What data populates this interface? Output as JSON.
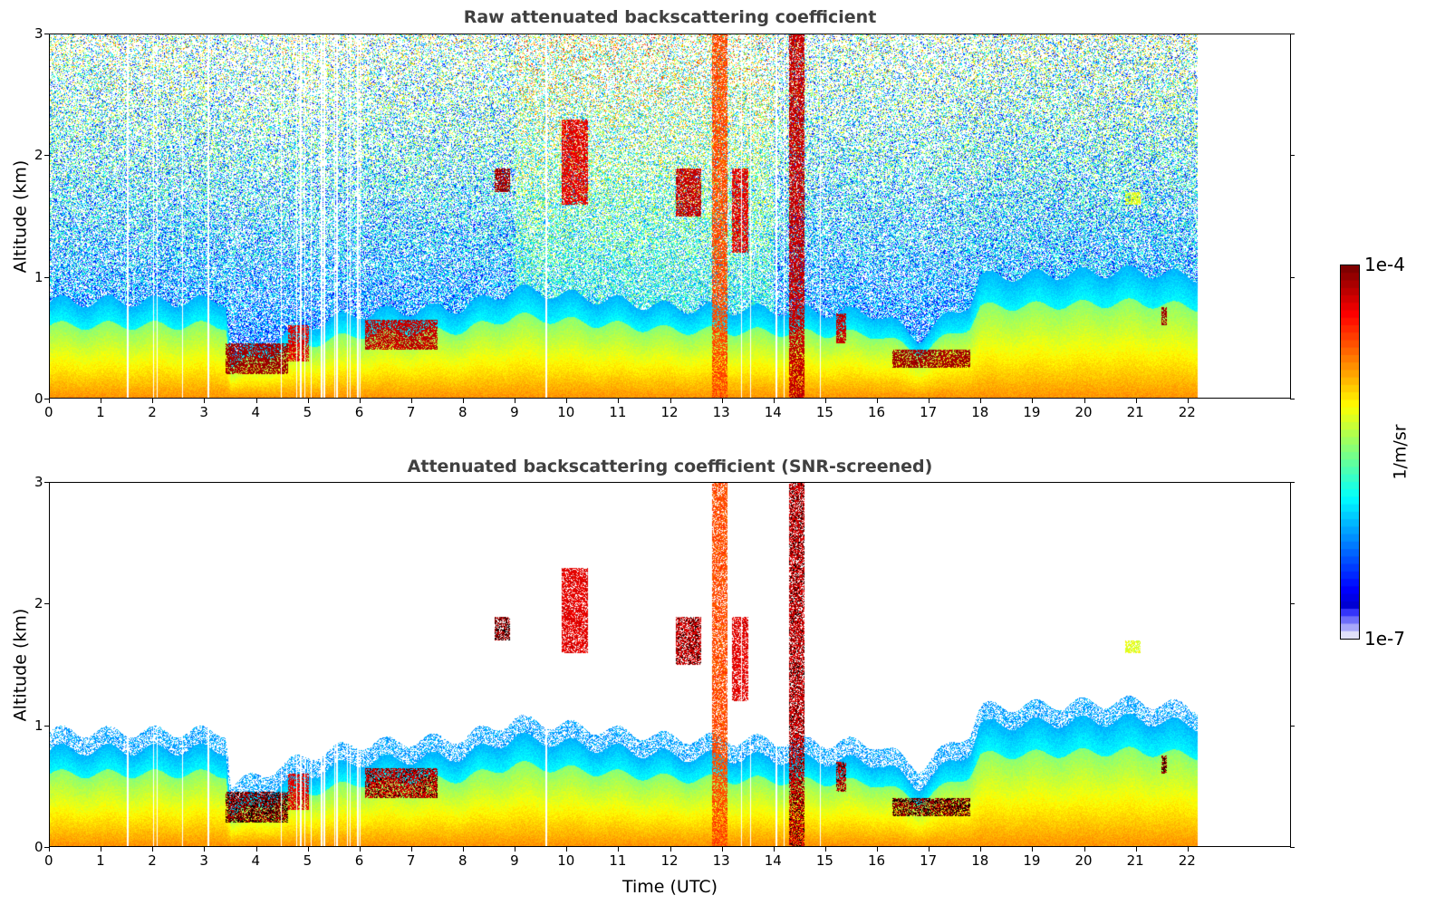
{
  "chart_data": [
    {
      "type": "heatmap",
      "title": "Raw attenuated backscattering coefficient",
      "xlabel": "",
      "ylabel": "Altitude (km)",
      "xlim": [
        0,
        24
      ],
      "ylim": [
        0,
        3
      ],
      "xticks": [
        "0",
        "1",
        "2",
        "3",
        "4",
        "5",
        "6",
        "7",
        "8",
        "9",
        "10",
        "11",
        "12",
        "13",
        "14",
        "15",
        "16",
        "17",
        "18",
        "19",
        "20",
        "21",
        "22"
      ],
      "yticks": [
        "0",
        "1",
        "2",
        "3"
      ],
      "screened": false
    },
    {
      "type": "heatmap",
      "title": "Attenuated backscattering coefficient (SNR-screened)",
      "xlabel": "Time (UTC)",
      "ylabel": "Altitude (km)",
      "xlim": [
        0,
        24
      ],
      "ylim": [
        0,
        3
      ],
      "xticks": [
        "0",
        "1",
        "2",
        "3",
        "4",
        "5",
        "6",
        "7",
        "8",
        "9",
        "10",
        "11",
        "12",
        "13",
        "14",
        "15",
        "16",
        "17",
        "18",
        "19",
        "20",
        "21",
        "22"
      ],
      "yticks": [
        "0",
        "1",
        "2",
        "3"
      ],
      "screened": true
    }
  ],
  "shared": {
    "data_end_time": 22.2,
    "boundary_layer_top_km": [
      [
        0,
        0.8
      ],
      [
        3.4,
        0.8
      ],
      [
        3.5,
        0.35
      ],
      [
        5,
        0.6
      ],
      [
        6,
        0.7
      ],
      [
        8,
        0.75
      ],
      [
        9,
        0.9
      ],
      [
        12,
        0.75
      ],
      [
        16,
        0.7
      ],
      [
        16.8,
        0.5
      ],
      [
        17.8,
        0.8
      ],
      [
        18,
        1.0
      ],
      [
        21,
        1.05
      ],
      [
        22.2,
        1.0
      ]
    ],
    "gap_columns_hours": [
      1.5,
      2.0,
      2.07,
      2.56,
      3.06,
      4.47,
      4.77,
      4.85,
      4.93,
      5.05,
      5.25,
      5.3,
      5.5,
      5.55,
      5.75,
      5.8,
      5.95,
      6.0,
      9.6,
      13.38,
      13.55,
      14.05,
      14.2,
      14.9
    ],
    "cloud_layers": [
      {
        "t": [
          3.4,
          4.6
        ],
        "z": [
          0.2,
          0.45
        ],
        "log10": -4.1
      },
      {
        "t": [
          4.6,
          5.0
        ],
        "z": [
          0.3,
          0.6
        ],
        "log10": -4.3
      },
      {
        "t": [
          6.1,
          7.5
        ],
        "z": [
          0.4,
          0.65
        ],
        "log10": -4.2
      },
      {
        "t": [
          8.6,
          8.9
        ],
        "z": [
          1.7,
          1.9
        ],
        "log10": -4.1
      },
      {
        "t": [
          9.9,
          10.4
        ],
        "z": [
          1.6,
          2.3
        ],
        "log10": -4.3
      },
      {
        "t": [
          12.1,
          12.6
        ],
        "z": [
          1.5,
          1.9
        ],
        "log10": -4.2
      },
      {
        "t": [
          13.2,
          13.5
        ],
        "z": [
          1.2,
          1.9
        ],
        "log10": -4.3
      },
      {
        "t": [
          12.8,
          13.1
        ],
        "z": [
          0,
          3
        ],
        "log10": -4.6
      },
      {
        "t": [
          14.3,
          14.6
        ],
        "z": [
          0,
          3
        ],
        "log10": -4.2
      },
      {
        "t": [
          15.2,
          15.4
        ],
        "z": [
          0.45,
          0.7
        ],
        "log10": -4.2
      },
      {
        "t": [
          16.3,
          17.8
        ],
        "z": [
          0.25,
          0.4
        ],
        "log10": -4.1
      },
      {
        "t": [
          21.5,
          21.6
        ],
        "z": [
          0.6,
          0.75
        ],
        "log10": -4.1
      },
      {
        "t": [
          20.8,
          21.1
        ],
        "z": [
          1.6,
          1.7
        ],
        "log10": -5.2
      }
    ]
  },
  "colorbar": {
    "label": "1/m/sr",
    "min_label": "1e-7",
    "max_label": "1e-4",
    "min": -7,
    "max": -4
  }
}
